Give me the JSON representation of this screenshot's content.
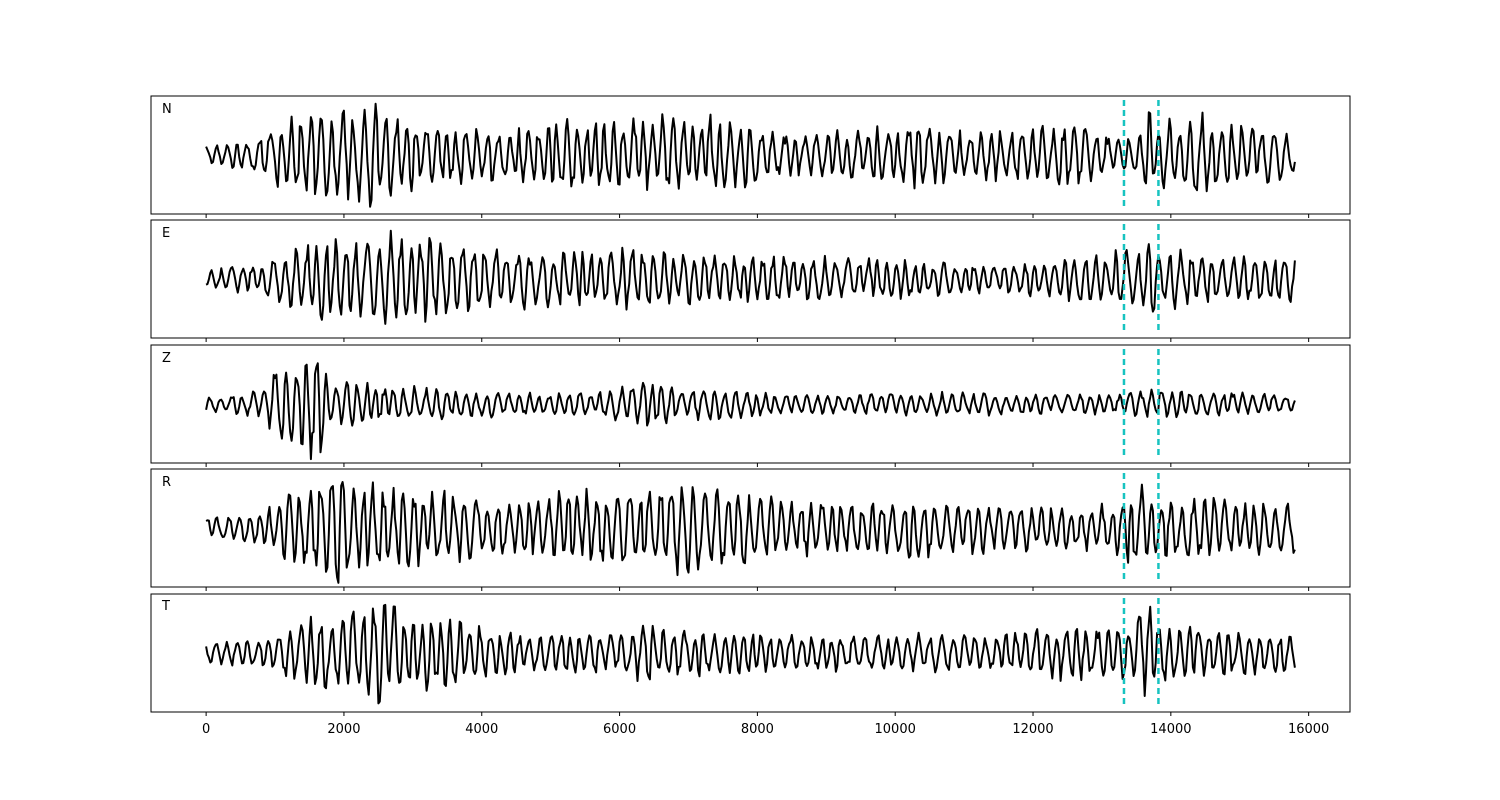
{
  "chart_data": {
    "type": "line",
    "title": "",
    "xlabel": "",
    "ylabel": "",
    "xlim": [
      -800,
      16600
    ],
    "xticks": [
      0,
      2000,
      4000,
      6000,
      8000,
      10000,
      12000,
      14000,
      16000
    ],
    "x_tick_labels": [
      "0",
      "2000",
      "4000",
      "6000",
      "8000",
      "10000",
      "12000",
      "14000",
      "16000"
    ],
    "n_samples": 15800,
    "grid": false,
    "legend": null,
    "trace_color": "#000000",
    "marker_color": "#17c3c0",
    "markers": [
      13320,
      13820
    ],
    "panels": [
      {
        "label": "N",
        "ylim": [
          -1.25,
          1.25
        ],
        "envelope": [
          [
            0,
            0.18
          ],
          [
            600,
            0.3
          ],
          [
            1200,
            0.75
          ],
          [
            1500,
            0.95
          ],
          [
            1800,
            0.9
          ],
          [
            2500,
            1.0
          ],
          [
            2900,
            0.7
          ],
          [
            3500,
            0.6
          ],
          [
            4500,
            0.5
          ],
          [
            5300,
            0.75
          ],
          [
            6200,
            0.8
          ],
          [
            7500,
            0.75
          ],
          [
            8500,
            0.4
          ],
          [
            9500,
            0.5
          ],
          [
            10300,
            0.65
          ],
          [
            11500,
            0.5
          ],
          [
            12600,
            0.6
          ],
          [
            13200,
            0.35
          ],
          [
            13600,
            0.5
          ],
          [
            13680,
            1.05
          ],
          [
            13800,
            0.6
          ],
          [
            14400,
            0.9
          ],
          [
            15000,
            0.6
          ],
          [
            15800,
            0.55
          ]
        ]
      },
      {
        "label": "E",
        "ylim": [
          -1.25,
          1.25
        ],
        "envelope": [
          [
            0,
            0.2
          ],
          [
            800,
            0.3
          ],
          [
            1200,
            0.6
          ],
          [
            1700,
            0.85
          ],
          [
            2100,
            0.8
          ],
          [
            2600,
            0.95
          ],
          [
            3300,
            0.85
          ],
          [
            4200,
            0.6
          ],
          [
            5000,
            0.55
          ],
          [
            5800,
            0.6
          ],
          [
            7000,
            0.55
          ],
          [
            8500,
            0.45
          ],
          [
            10000,
            0.4
          ],
          [
            11000,
            0.3
          ],
          [
            12200,
            0.35
          ],
          [
            13000,
            0.55
          ],
          [
            13600,
            0.6
          ],
          [
            13680,
            1.05
          ],
          [
            13800,
            0.6
          ],
          [
            14500,
            0.5
          ],
          [
            15800,
            0.45
          ]
        ]
      },
      {
        "label": "Z",
        "ylim": [
          -1.25,
          1.25
        ],
        "envelope": [
          [
            0,
            0.15
          ],
          [
            500,
            0.2
          ],
          [
            900,
            0.35
          ],
          [
            1000,
            0.9
          ],
          [
            1300,
            0.75
          ],
          [
            1650,
            1.35
          ],
          [
            1800,
            0.5
          ],
          [
            2300,
            0.4
          ],
          [
            3500,
            0.3
          ],
          [
            5000,
            0.2
          ],
          [
            5800,
            0.25
          ],
          [
            6100,
            0.5
          ],
          [
            7200,
            0.3
          ],
          [
            9000,
            0.18
          ],
          [
            10300,
            0.25
          ],
          [
            11000,
            0.22
          ],
          [
            12500,
            0.2
          ],
          [
            13200,
            0.2
          ],
          [
            13820,
            0.3
          ],
          [
            15800,
            0.18
          ]
        ]
      },
      {
        "label": "R",
        "ylim": [
          -1.25,
          1.25
        ],
        "envelope": [
          [
            0,
            0.2
          ],
          [
            800,
            0.3
          ],
          [
            1200,
            0.75
          ],
          [
            1500,
            0.85
          ],
          [
            1700,
            1.2
          ],
          [
            2500,
            0.85
          ],
          [
            3400,
            0.75
          ],
          [
            4500,
            0.5
          ],
          [
            5300,
            0.75
          ],
          [
            6300,
            0.85
          ],
          [
            7200,
            0.95
          ],
          [
            8200,
            0.6
          ],
          [
            9500,
            0.45
          ],
          [
            10300,
            0.65
          ],
          [
            11500,
            0.45
          ],
          [
            12500,
            0.45
          ],
          [
            13200,
            0.5
          ],
          [
            13650,
            1.05
          ],
          [
            13800,
            0.55
          ],
          [
            14500,
            0.65
          ],
          [
            15800,
            0.5
          ]
        ]
      },
      {
        "label": "T",
        "ylim": [
          -1.25,
          1.25
        ],
        "envelope": [
          [
            0,
            0.2
          ],
          [
            800,
            0.3
          ],
          [
            1400,
            0.7
          ],
          [
            2000,
            0.85
          ],
          [
            2550,
            1.1
          ],
          [
            3000,
            0.75
          ],
          [
            3400,
            0.7
          ],
          [
            4500,
            0.4
          ],
          [
            6000,
            0.4
          ],
          [
            6400,
            0.6
          ],
          [
            7200,
            0.45
          ],
          [
            9000,
            0.35
          ],
          [
            10500,
            0.4
          ],
          [
            11500,
            0.35
          ],
          [
            12500,
            0.55
          ],
          [
            13300,
            0.6
          ],
          [
            13700,
            1.05
          ],
          [
            13800,
            0.6
          ],
          [
            14500,
            0.5
          ],
          [
            15800,
            0.35
          ]
        ]
      }
    ]
  }
}
